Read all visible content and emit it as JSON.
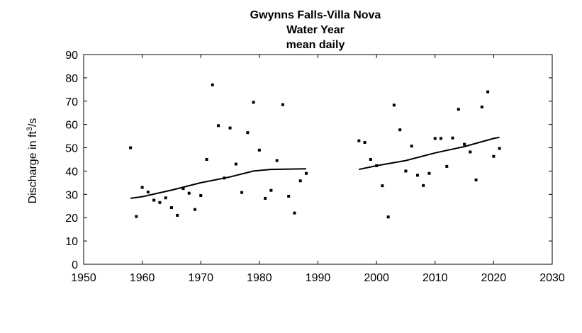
{
  "chart_data": {
    "type": "scatter",
    "title_lines": [
      "Gwynns Falls-Villa Nova",
      "Water Year",
      "mean daily"
    ],
    "xlabel": "",
    "ylabel": {
      "main": "Discharge in ft",
      "superscript": "3",
      "suffix": "/s"
    },
    "xlim": [
      1950,
      2030
    ],
    "ylim": [
      0,
      90
    ],
    "x_ticks": [
      1950,
      1960,
      1970,
      1980,
      1990,
      2000,
      2010,
      2020,
      2030
    ],
    "y_ticks": [
      0,
      10,
      20,
      30,
      40,
      50,
      60,
      70,
      80,
      90
    ],
    "grid": false,
    "legend": "none",
    "points": [
      [
        1958,
        50
      ],
      [
        1959,
        20.5
      ],
      [
        1960,
        33
      ],
      [
        1961,
        31
      ],
      [
        1962,
        27.5
      ],
      [
        1963,
        26.5
      ],
      [
        1964,
        28.5
      ],
      [
        1965,
        24.3
      ],
      [
        1966,
        21
      ],
      [
        1967,
        32.5
      ],
      [
        1968,
        30.5
      ],
      [
        1969,
        23.5
      ],
      [
        1970,
        29.5
      ],
      [
        1971,
        45
      ],
      [
        1972,
        77
      ],
      [
        1973,
        59.5
      ],
      [
        1974,
        37
      ],
      [
        1975,
        58.5
      ],
      [
        1976,
        43
      ],
      [
        1977,
        30.8
      ],
      [
        1978,
        56.5
      ],
      [
        1979,
        69.5
      ],
      [
        1980,
        49
      ],
      [
        1981,
        28.3
      ],
      [
        1982,
        31.7
      ],
      [
        1983,
        44.5
      ],
      [
        1984,
        68.5
      ],
      [
        1985,
        29.2
      ],
      [
        1986,
        22
      ],
      [
        1987,
        35.8
      ],
      [
        1988,
        39
      ],
      [
        1997,
        53
      ],
      [
        1998,
        52.3
      ],
      [
        1999,
        45
      ],
      [
        2000,
        42.3
      ],
      [
        2001,
        33.7
      ],
      [
        2002,
        20.3
      ],
      [
        2003,
        68.3
      ],
      [
        2004,
        57.7
      ],
      [
        2005,
        40
      ],
      [
        2006,
        50.7
      ],
      [
        2007,
        38.2
      ],
      [
        2008,
        33.8
      ],
      [
        2009,
        39
      ],
      [
        2010,
        54
      ],
      [
        2011,
        54
      ],
      [
        2012,
        42
      ],
      [
        2013,
        54.2
      ],
      [
        2014,
        66.5
      ],
      [
        2015,
        51.5
      ],
      [
        2016,
        48.2
      ],
      [
        2017,
        36.2
      ],
      [
        2018,
        67.5
      ],
      [
        2019,
        74
      ],
      [
        2020,
        46.3
      ],
      [
        2021,
        49.7
      ]
    ],
    "trend_lines": [
      [
        [
          1958,
          28.3
        ],
        [
          1960,
          29
        ],
        [
          1965,
          31.8
        ],
        [
          1970,
          35
        ],
        [
          1975,
          37.5
        ],
        [
          1979,
          40
        ],
        [
          1982,
          40.7
        ],
        [
          1988,
          41
        ]
      ],
      [
        [
          1997,
          40.7
        ],
        [
          2000,
          42.3
        ],
        [
          2005,
          44.5
        ],
        [
          2010,
          47.8
        ],
        [
          2015,
          50.5
        ],
        [
          2020,
          54
        ],
        [
          2021,
          54.5
        ]
      ]
    ],
    "colors": {
      "points": "#000000",
      "lines": "#000000",
      "frame": "#000000"
    }
  }
}
